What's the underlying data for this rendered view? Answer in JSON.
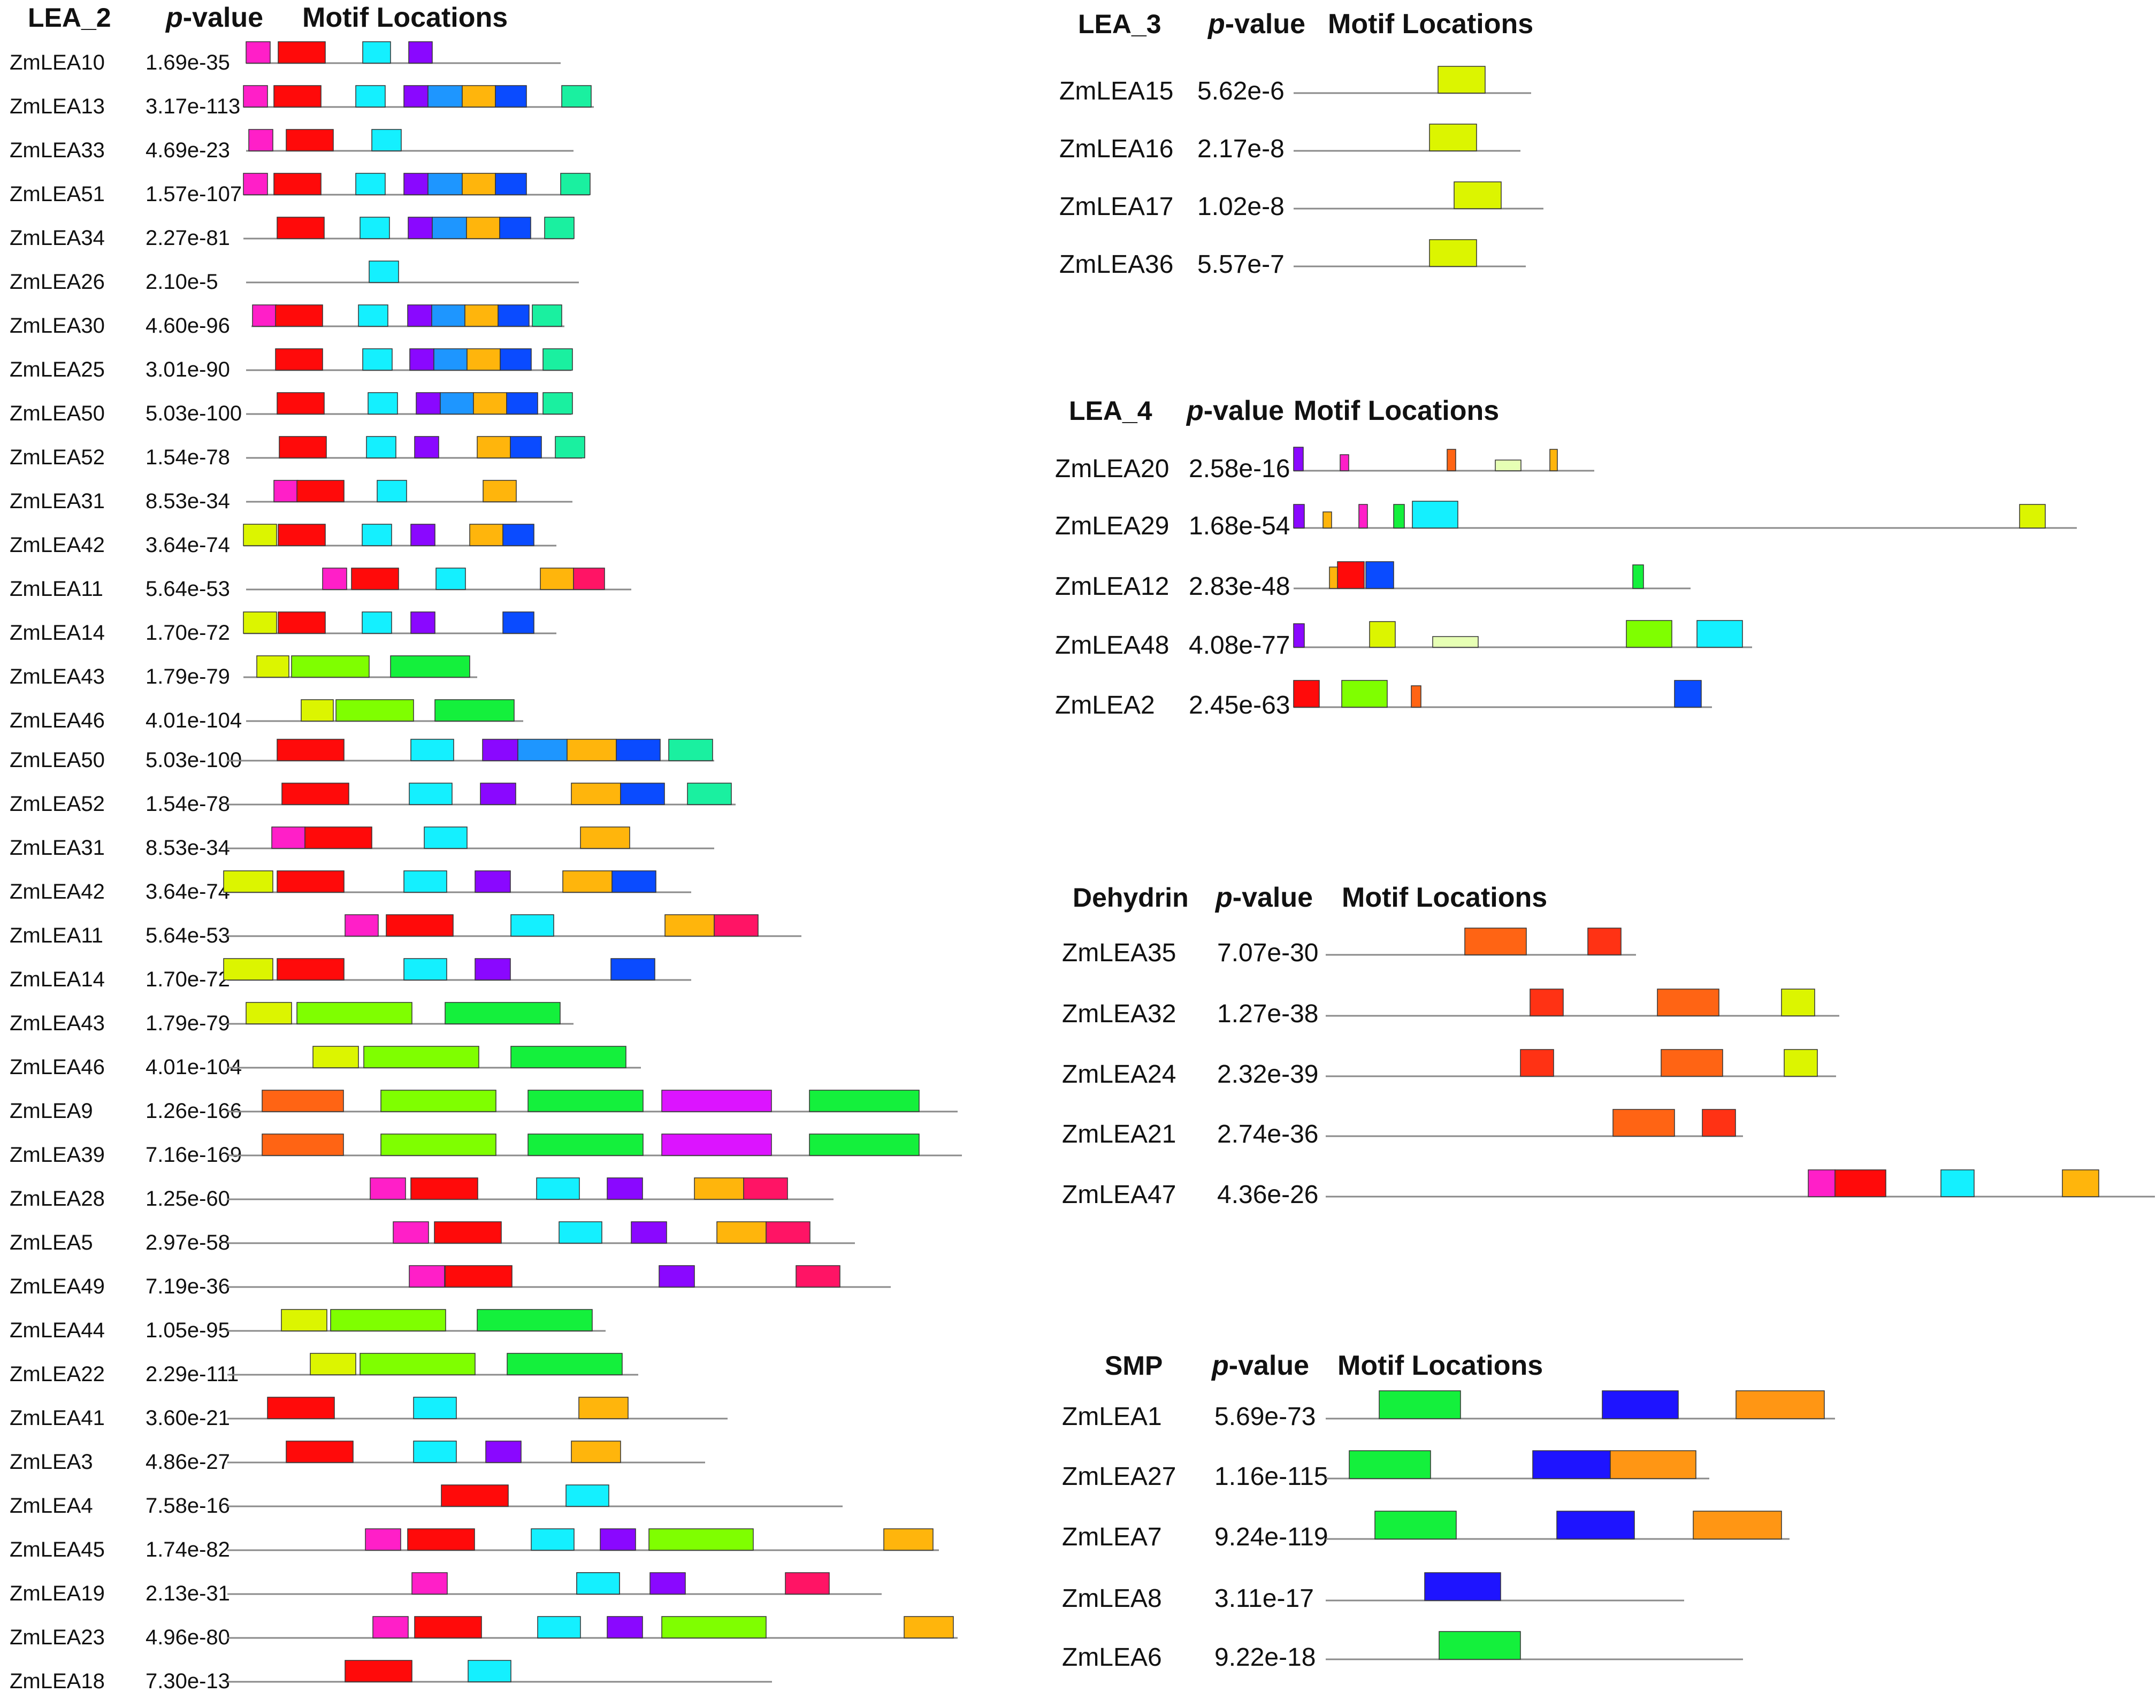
{
  "colors": {
    "magenta": "#ff1fc8",
    "red": "#ff0a0a",
    "cyan": "#14f0ff",
    "purple": "#8a08ff",
    "azure": "#1e96ff",
    "orange_yellow": "#ffb50c",
    "blue": "#0a4bff",
    "teal": "#1af0a0",
    "yellow_green": "#dcf500",
    "lime": "#7fff00",
    "green": "#14f03c",
    "dark_orange": "#ff6414",
    "violet": "#dc14ff",
    "crimson": "#ff1465",
    "pale_green": "#e6ffb4",
    "orange_red": "#ff3214",
    "royal_blue": "#1e14ff",
    "orange": "#ff9614",
    "backbone": "#8a8a8a"
  },
  "groups": [
    {
      "name": "LEA_2",
      "p_label": "p",
      "p_suffix": "-value",
      "motif_label": "Motif Locations",
      "rows": [
        {
          "gene": "ZmLEA10",
          "p": "1.69e-35"
        },
        {
          "gene": "ZmLEA13",
          "p": "3.17e-113"
        },
        {
          "gene": "ZmLEA33",
          "p": "4.69e-23"
        },
        {
          "gene": "ZmLEA51",
          "p": "1.57e-107"
        },
        {
          "gene": "ZmLEA34",
          "p": "2.27e-81"
        },
        {
          "gene": "ZmLEA26",
          "p": "2.10e-5"
        },
        {
          "gene": "ZmLEA30",
          "p": "4.60e-96"
        },
        {
          "gene": "ZmLEA25",
          "p": "3.01e-90"
        },
        {
          "gene": "ZmLEA50",
          "p": "5.03e-100"
        },
        {
          "gene": "ZmLEA52",
          "p": "1.54e-78"
        },
        {
          "gene": "ZmLEA31",
          "p": "8.53e-34"
        },
        {
          "gene": "ZmLEA42",
          "p": "3.64e-74"
        },
        {
          "gene": "ZmLEA11",
          "p": "5.64e-53"
        },
        {
          "gene": "ZmLEA14",
          "p": "1.70e-72"
        },
        {
          "gene": "ZmLEA43",
          "p": "1.79e-79"
        },
        {
          "gene": "ZmLEA46",
          "p": "4.01e-104"
        },
        {
          "gene": "ZmLEA50",
          "p": "5.03e-100"
        },
        {
          "gene": "ZmLEA52",
          "p": "1.54e-78"
        },
        {
          "gene": "ZmLEA31",
          "p": "8.53e-34"
        },
        {
          "gene": "ZmLEA42",
          "p": "3.64e-74"
        },
        {
          "gene": "ZmLEA11",
          "p": "5.64e-53"
        },
        {
          "gene": "ZmLEA14",
          "p": "1.70e-72"
        },
        {
          "gene": "ZmLEA43",
          "p": "1.79e-79"
        },
        {
          "gene": "ZmLEA46",
          "p": "4.01e-104"
        },
        {
          "gene": "ZmLEA9",
          "p": "1.26e-166"
        },
        {
          "gene": "ZmLEA39",
          "p": "7.16e-169"
        },
        {
          "gene": "ZmLEA28",
          "p": "1.25e-60"
        },
        {
          "gene": "ZmLEA5",
          "p": "2.97e-58"
        },
        {
          "gene": "ZmLEA49",
          "p": "7.19e-36"
        },
        {
          "gene": "ZmLEA44",
          "p": "1.05e-95"
        },
        {
          "gene": "ZmLEA22",
          "p": "2.29e-111"
        },
        {
          "gene": "ZmLEA41",
          "p": "3.60e-21"
        },
        {
          "gene": "ZmLEA3",
          "p": "4.86e-27"
        },
        {
          "gene": "ZmLEA4",
          "p": "7.58e-16"
        },
        {
          "gene": "ZmLEA45",
          "p": "1.74e-82"
        },
        {
          "gene": "ZmLEA19",
          "p": "2.13e-31"
        },
        {
          "gene": "ZmLEA23",
          "p": "4.96e-80"
        },
        {
          "gene": "ZmLEA18",
          "p": "7.30e-13"
        }
      ]
    },
    {
      "name": "LEA_3",
      "p_label": "p",
      "p_suffix": "-value",
      "motif_label": "Motif Locations",
      "rows": [
        {
          "gene": "ZmLEA15",
          "p": "5.62e-6"
        },
        {
          "gene": "ZmLEA16",
          "p": "2.17e-8"
        },
        {
          "gene": "ZmLEA17",
          "p": "1.02e-8"
        },
        {
          "gene": "ZmLEA36",
          "p": "5.57e-7"
        }
      ]
    },
    {
      "name": "LEA_4",
      "p_label": "p",
      "p_suffix": "-value",
      "motif_label": "Motif Locations",
      "rows": [
        {
          "gene": "ZmLEA20",
          "p": "2.58e-16"
        },
        {
          "gene": "ZmLEA29",
          "p": "1.68e-54"
        },
        {
          "gene": "ZmLEA12",
          "p": "2.83e-48"
        },
        {
          "gene": "ZmLEA48",
          "p": "4.08e-77"
        },
        {
          "gene": "ZmLEA2",
          "p": "2.45e-63"
        }
      ]
    },
    {
      "name": "Dehydrin",
      "p_label": "p",
      "p_suffix": "-value",
      "motif_label": "Motif Locations",
      "rows": [
        {
          "gene": "ZmLEA35",
          "p": "7.07e-30"
        },
        {
          "gene": "ZmLEA32",
          "p": "1.27e-38"
        },
        {
          "gene": "ZmLEA24",
          "p": "2.32e-39"
        },
        {
          "gene": "ZmLEA21",
          "p": "2.74e-36"
        },
        {
          "gene": "ZmLEA47",
          "p": "4.36e-26"
        }
      ]
    },
    {
      "name": "SMP",
      "p_label": "p",
      "p_suffix": "-value",
      "motif_label": "Motif Locations",
      "rows": [
        {
          "gene": "ZmLEA1",
          "p": "5.69e-73"
        },
        {
          "gene": "ZmLEA27",
          "p": "1.16e-115"
        },
        {
          "gene": "ZmLEA7",
          "p": "9.24e-119"
        },
        {
          "gene": "ZmLEA8",
          "p": "3.11e-17"
        },
        {
          "gene": "ZmLEA6",
          "p": "9.22e-18"
        }
      ]
    }
  ]
}
